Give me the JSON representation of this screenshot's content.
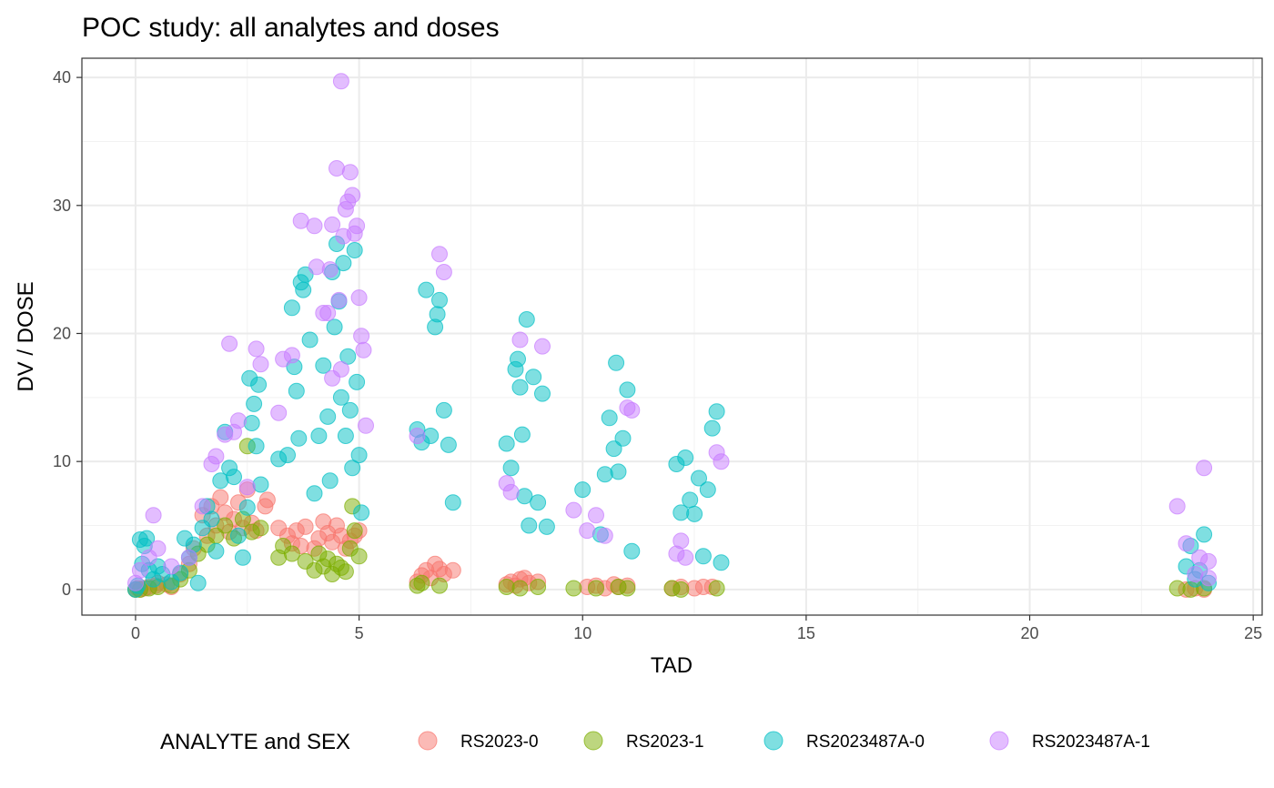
{
  "chart_data": {
    "type": "scatter",
    "title": "POC study: all analytes and doses",
    "xlabel": "TAD",
    "ylabel": "DV / DOSE",
    "xlim": [
      -1.2,
      25.2
    ],
    "ylim": [
      -2.0,
      41.5
    ],
    "x_ticks": [
      0,
      5,
      10,
      15,
      20,
      25
    ],
    "y_ticks": [
      0,
      10,
      20,
      30,
      40
    ],
    "grid": true,
    "legend_placement": "bottom",
    "legend_title": "ANALYTE and SEX",
    "point_opacity": 0.5,
    "series": [
      {
        "name": "RS2023-0",
        "color": "#F8766D",
        "points": [
          [
            0.0,
            0.0
          ],
          [
            0.05,
            0.1
          ],
          [
            0.1,
            0.0
          ],
          [
            0.2,
            0.1
          ],
          [
            0.3,
            0.2
          ],
          [
            0.45,
            0.3
          ],
          [
            0.5,
            0.5
          ],
          [
            0.7,
            0.4
          ],
          [
            0.8,
            0.2
          ],
          [
            1.0,
            1.2
          ],
          [
            1.2,
            2.0
          ],
          [
            1.3,
            3.2
          ],
          [
            1.5,
            5.8
          ],
          [
            1.6,
            4.2
          ],
          [
            1.7,
            6.5
          ],
          [
            1.8,
            5.0
          ],
          [
            1.9,
            7.2
          ],
          [
            2.0,
            6.0
          ],
          [
            2.1,
            4.5
          ],
          [
            2.2,
            5.5
          ],
          [
            2.3,
            6.8
          ],
          [
            2.4,
            4.8
          ],
          [
            2.5,
            7.8
          ],
          [
            2.6,
            5.2
          ],
          [
            2.7,
            4.6
          ],
          [
            2.9,
            6.5
          ],
          [
            2.95,
            7.0
          ],
          [
            3.2,
            4.8
          ],
          [
            3.4,
            4.2
          ],
          [
            3.5,
            3.6
          ],
          [
            3.6,
            4.6
          ],
          [
            3.7,
            3.4
          ],
          [
            3.8,
            4.9
          ],
          [
            4.0,
            3.2
          ],
          [
            4.1,
            4.0
          ],
          [
            4.2,
            5.3
          ],
          [
            4.3,
            4.4
          ],
          [
            4.4,
            3.7
          ],
          [
            4.5,
            5.0
          ],
          [
            4.6,
            4.2
          ],
          [
            4.7,
            3.2
          ],
          [
            4.8,
            3.8
          ],
          [
            4.9,
            4.2
          ],
          [
            5.0,
            4.6
          ],
          [
            6.3,
            0.6
          ],
          [
            6.4,
            1.1
          ],
          [
            6.5,
            1.5
          ],
          [
            6.6,
            0.9
          ],
          [
            6.7,
            2.0
          ],
          [
            6.8,
            1.6
          ],
          [
            6.9,
            1.2
          ],
          [
            7.1,
            1.5
          ],
          [
            8.3,
            0.4
          ],
          [
            8.4,
            0.6
          ],
          [
            8.5,
            0.3
          ],
          [
            8.6,
            0.8
          ],
          [
            8.7,
            0.9
          ],
          [
            8.8,
            0.5
          ],
          [
            9.0,
            0.6
          ],
          [
            10.1,
            0.2
          ],
          [
            10.3,
            0.3
          ],
          [
            10.5,
            0.1
          ],
          [
            10.7,
            0.4
          ],
          [
            10.8,
            0.2
          ],
          [
            11.0,
            0.3
          ],
          [
            12.0,
            0.1
          ],
          [
            12.2,
            0.2
          ],
          [
            12.5,
            0.1
          ],
          [
            12.7,
            0.2
          ],
          [
            12.9,
            0.2
          ],
          [
            23.5,
            0.0
          ],
          [
            23.7,
            0.1
          ],
          [
            23.9,
            0.0
          ]
        ]
      },
      {
        "name": "RS2023-1",
        "color": "#7CAE00",
        "points": [
          [
            0.0,
            0.0
          ],
          [
            0.1,
            0.0
          ],
          [
            0.3,
            0.1
          ],
          [
            0.5,
            0.2
          ],
          [
            0.8,
            0.3
          ],
          [
            1.0,
            0.8
          ],
          [
            1.2,
            1.5
          ],
          [
            1.4,
            2.8
          ],
          [
            1.6,
            3.5
          ],
          [
            1.8,
            4.2
          ],
          [
            2.0,
            5.0
          ],
          [
            2.2,
            4.0
          ],
          [
            2.4,
            5.5
          ],
          [
            2.5,
            11.2
          ],
          [
            2.6,
            4.5
          ],
          [
            2.8,
            4.8
          ],
          [
            3.2,
            2.5
          ],
          [
            3.3,
            3.4
          ],
          [
            3.5,
            2.8
          ],
          [
            3.8,
            2.2
          ],
          [
            4.0,
            1.5
          ],
          [
            4.1,
            2.8
          ],
          [
            4.2,
            1.8
          ],
          [
            4.3,
            2.4
          ],
          [
            4.4,
            1.2
          ],
          [
            4.5,
            2.0
          ],
          [
            4.6,
            1.7
          ],
          [
            4.7,
            1.4
          ],
          [
            4.8,
            3.2
          ],
          [
            4.85,
            6.5
          ],
          [
            4.9,
            4.6
          ],
          [
            5.0,
            2.6
          ],
          [
            6.3,
            0.3
          ],
          [
            6.4,
            0.5
          ],
          [
            6.8,
            0.3
          ],
          [
            8.3,
            0.2
          ],
          [
            8.6,
            0.1
          ],
          [
            9.0,
            0.2
          ],
          [
            9.8,
            0.1
          ],
          [
            10.3,
            0.1
          ],
          [
            10.8,
            0.2
          ],
          [
            11.0,
            0.1
          ],
          [
            12.0,
            0.1
          ],
          [
            12.2,
            0.0
          ],
          [
            13.0,
            0.1
          ],
          [
            23.3,
            0.1
          ],
          [
            23.6,
            0.0
          ],
          [
            23.9,
            0.1
          ]
        ]
      },
      {
        "name": "RS2023487A-0",
        "color": "#00BFC4",
        "points": [
          [
            0.0,
            0.0
          ],
          [
            0.05,
            0.3
          ],
          [
            0.1,
            3.9
          ],
          [
            0.15,
            2.0
          ],
          [
            0.2,
            3.4
          ],
          [
            0.25,
            4.0
          ],
          [
            0.3,
            1.5
          ],
          [
            0.4,
            0.8
          ],
          [
            0.5,
            1.8
          ],
          [
            0.6,
            1.2
          ],
          [
            0.8,
            0.6
          ],
          [
            1.0,
            1.3
          ],
          [
            1.1,
            4.0
          ],
          [
            1.2,
            2.5
          ],
          [
            1.3,
            3.5
          ],
          [
            1.4,
            0.5
          ],
          [
            1.5,
            4.8
          ],
          [
            1.6,
            6.5
          ],
          [
            1.7,
            5.5
          ],
          [
            1.8,
            3.0
          ],
          [
            1.9,
            8.5
          ],
          [
            2.0,
            12.3
          ],
          [
            2.1,
            9.5
          ],
          [
            2.2,
            8.8
          ],
          [
            2.3,
            4.2
          ],
          [
            2.4,
            2.5
          ],
          [
            2.5,
            6.4
          ],
          [
            2.55,
            16.5
          ],
          [
            2.6,
            13.0
          ],
          [
            2.65,
            14.5
          ],
          [
            2.7,
            11.2
          ],
          [
            2.75,
            16.0
          ],
          [
            2.8,
            8.2
          ],
          [
            3.2,
            10.2
          ],
          [
            3.4,
            10.5
          ],
          [
            3.5,
            22.0
          ],
          [
            3.55,
            17.4
          ],
          [
            3.6,
            15.5
          ],
          [
            3.65,
            11.8
          ],
          [
            3.7,
            24.0
          ],
          [
            3.75,
            23.4
          ],
          [
            3.8,
            24.6
          ],
          [
            3.9,
            19.5
          ],
          [
            4.0,
            7.5
          ],
          [
            4.1,
            12.0
          ],
          [
            4.2,
            17.5
          ],
          [
            4.3,
            13.5
          ],
          [
            4.35,
            8.5
          ],
          [
            4.4,
            24.8
          ],
          [
            4.45,
            20.5
          ],
          [
            4.5,
            27.0
          ],
          [
            4.55,
            22.5
          ],
          [
            4.6,
            15.0
          ],
          [
            4.65,
            25.5
          ],
          [
            4.7,
            12.0
          ],
          [
            4.75,
            18.2
          ],
          [
            4.8,
            14.0
          ],
          [
            4.85,
            9.5
          ],
          [
            4.9,
            26.5
          ],
          [
            4.95,
            16.2
          ],
          [
            5.0,
            10.5
          ],
          [
            5.05,
            6.0
          ],
          [
            6.3,
            12.5
          ],
          [
            6.4,
            11.5
          ],
          [
            6.5,
            23.4
          ],
          [
            6.6,
            12.0
          ],
          [
            6.7,
            20.5
          ],
          [
            6.75,
            21.5
          ],
          [
            6.8,
            22.6
          ],
          [
            6.9,
            14.0
          ],
          [
            7.0,
            11.3
          ],
          [
            7.1,
            6.8
          ],
          [
            8.3,
            11.4
          ],
          [
            8.4,
            9.5
          ],
          [
            8.5,
            17.2
          ],
          [
            8.55,
            18.0
          ],
          [
            8.6,
            15.8
          ],
          [
            8.65,
            12.1
          ],
          [
            8.7,
            7.3
          ],
          [
            8.75,
            21.1
          ],
          [
            8.8,
            5.0
          ],
          [
            8.9,
            16.6
          ],
          [
            9.0,
            6.8
          ],
          [
            9.1,
            15.3
          ],
          [
            9.2,
            4.9
          ],
          [
            10.0,
            7.8
          ],
          [
            10.4,
            4.3
          ],
          [
            10.5,
            9.0
          ],
          [
            10.6,
            13.4
          ],
          [
            10.7,
            11.0
          ],
          [
            10.75,
            17.7
          ],
          [
            10.8,
            9.2
          ],
          [
            10.9,
            11.8
          ],
          [
            11.0,
            15.6
          ],
          [
            11.1,
            3.0
          ],
          [
            12.1,
            9.8
          ],
          [
            12.2,
            6.0
          ],
          [
            12.3,
            10.3
          ],
          [
            12.4,
            7.0
          ],
          [
            12.5,
            5.9
          ],
          [
            12.6,
            8.7
          ],
          [
            12.7,
            2.6
          ],
          [
            12.8,
            7.8
          ],
          [
            12.9,
            12.6
          ],
          [
            13.0,
            13.9
          ],
          [
            13.1,
            2.1
          ],
          [
            23.5,
            1.8
          ],
          [
            23.6,
            3.4
          ],
          [
            23.7,
            0.8
          ],
          [
            23.8,
            1.5
          ],
          [
            23.9,
            4.3
          ],
          [
            24.0,
            0.5
          ]
        ]
      },
      {
        "name": "RS2023487A-1",
        "color": "#C77CFF",
        "points": [
          [
            0.0,
            0.5
          ],
          [
            0.1,
            1.5
          ],
          [
            0.3,
            2.5
          ],
          [
            0.4,
            5.8
          ],
          [
            0.5,
            3.2
          ],
          [
            0.8,
            1.8
          ],
          [
            1.2,
            2.5
          ],
          [
            1.5,
            6.5
          ],
          [
            1.7,
            9.8
          ],
          [
            1.8,
            10.4
          ],
          [
            2.0,
            12.1
          ],
          [
            2.1,
            19.2
          ],
          [
            2.2,
            12.3
          ],
          [
            2.3,
            13.2
          ],
          [
            2.5,
            8.0
          ],
          [
            2.7,
            18.8
          ],
          [
            2.8,
            17.6
          ],
          [
            3.2,
            13.8
          ],
          [
            3.3,
            18.0
          ],
          [
            3.5,
            18.3
          ],
          [
            3.7,
            28.8
          ],
          [
            4.0,
            28.4
          ],
          [
            4.05,
            25.2
          ],
          [
            4.2,
            21.6
          ],
          [
            4.3,
            21.6
          ],
          [
            4.35,
            25.0
          ],
          [
            4.4,
            28.5
          ],
          [
            4.5,
            32.9
          ],
          [
            4.55,
            22.6
          ],
          [
            4.6,
            39.7
          ],
          [
            4.65,
            27.6
          ],
          [
            4.7,
            29.7
          ],
          [
            4.75,
            30.3
          ],
          [
            4.8,
            32.6
          ],
          [
            4.85,
            30.8
          ],
          [
            4.9,
            27.8
          ],
          [
            4.95,
            28.4
          ],
          [
            5.0,
            22.8
          ],
          [
            5.05,
            19.8
          ],
          [
            5.1,
            18.7
          ],
          [
            5.15,
            12.8
          ],
          [
            4.4,
            16.5
          ],
          [
            4.6,
            17.2
          ],
          [
            6.3,
            12.0
          ],
          [
            6.8,
            26.2
          ],
          [
            6.9,
            24.8
          ],
          [
            8.3,
            8.3
          ],
          [
            8.4,
            7.6
          ],
          [
            8.6,
            19.5
          ],
          [
            9.1,
            19.0
          ],
          [
            9.8,
            6.2
          ],
          [
            10.1,
            4.6
          ],
          [
            10.3,
            5.8
          ],
          [
            10.5,
            4.2
          ],
          [
            11.0,
            14.2
          ],
          [
            11.1,
            14.0
          ],
          [
            12.1,
            2.8
          ],
          [
            12.2,
            3.8
          ],
          [
            12.3,
            2.5
          ],
          [
            13.0,
            10.7
          ],
          [
            13.1,
            10.0
          ],
          [
            23.3,
            6.5
          ],
          [
            23.5,
            3.6
          ],
          [
            23.7,
            1.2
          ],
          [
            23.8,
            2.5
          ],
          [
            23.9,
            9.5
          ],
          [
            24.0,
            2.2
          ],
          [
            24.0,
            0.9
          ]
        ]
      }
    ]
  }
}
